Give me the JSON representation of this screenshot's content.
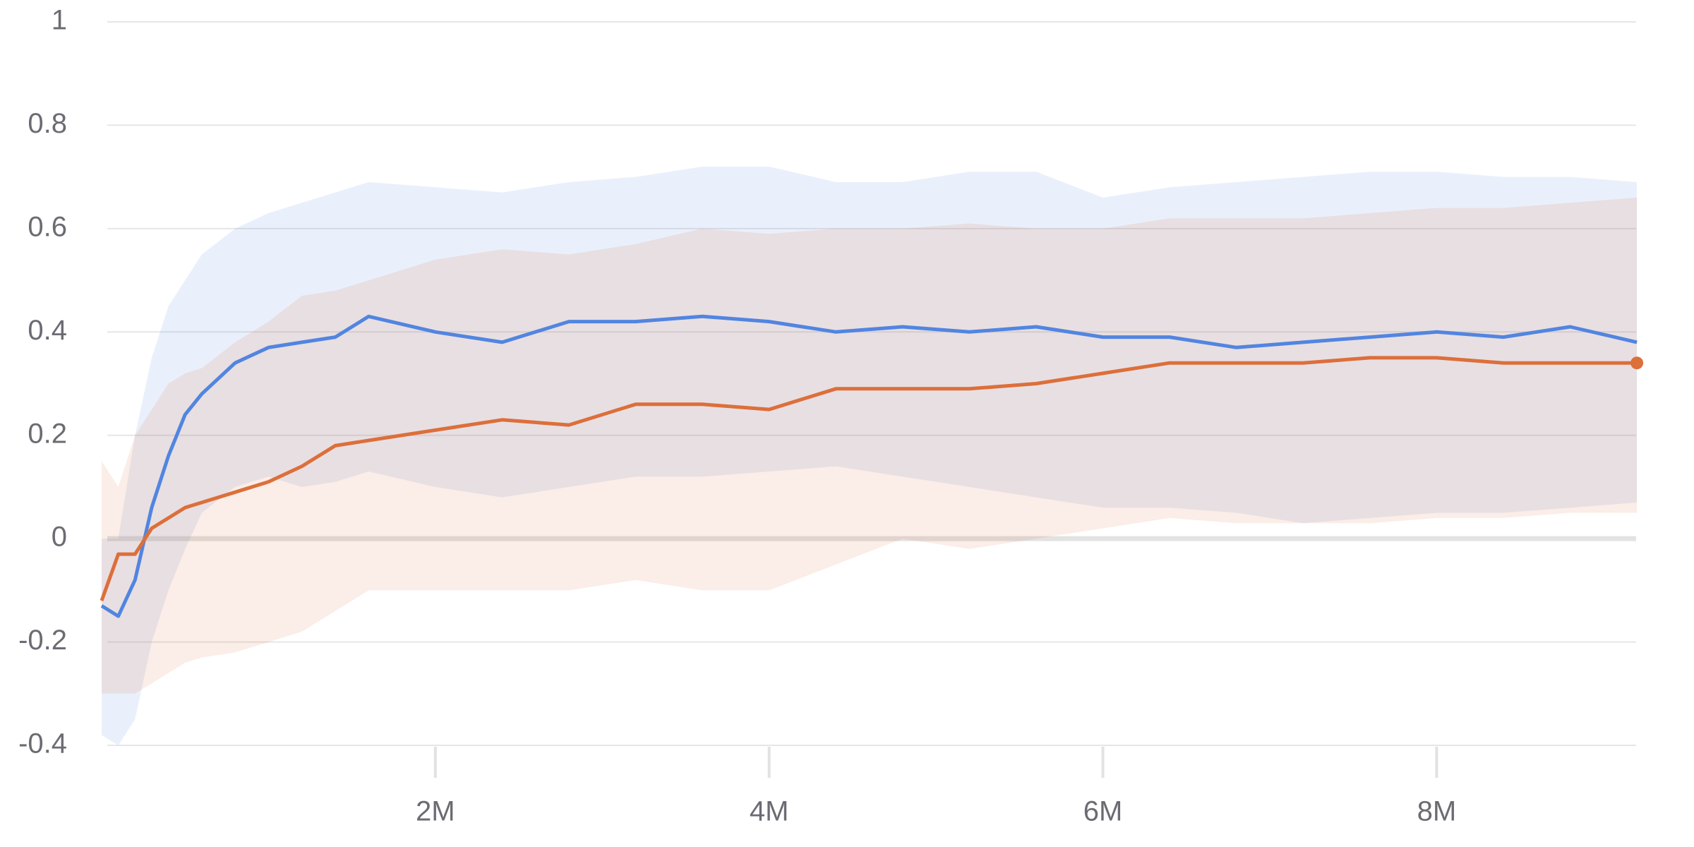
{
  "chart_data": {
    "type": "line",
    "x": [
      0,
      100000,
      200000,
      300000,
      400000,
      500000,
      600000,
      800000,
      1000000,
      1200000,
      1400000,
      1600000,
      2000000,
      2400000,
      2800000,
      3200000,
      3600000,
      4000000,
      4400000,
      4800000,
      5200000,
      5600000,
      6000000,
      6400000,
      6800000,
      7200000,
      7600000,
      8000000,
      8400000,
      8800000,
      9200000
    ],
    "series": [
      {
        "color": "#5185e0",
        "values": [
          -0.13,
          -0.15,
          -0.08,
          0.06,
          0.16,
          0.24,
          0.28,
          0.34,
          0.37,
          0.38,
          0.39,
          0.43,
          0.4,
          0.38,
          0.42,
          0.42,
          0.43,
          0.42,
          0.4,
          0.41,
          0.4,
          0.41,
          0.39,
          0.39,
          0.37,
          0.38,
          0.39,
          0.4,
          0.39,
          0.41,
          0.38
        ],
        "band": {
          "upper": [
            0.0,
            0.0,
            0.2,
            0.35,
            0.45,
            0.5,
            0.55,
            0.6,
            0.63,
            0.65,
            0.67,
            0.69,
            0.68,
            0.67,
            0.69,
            0.7,
            0.72,
            0.72,
            0.69,
            0.69,
            0.71,
            0.71,
            0.66,
            0.68,
            0.69,
            0.7,
            0.71,
            0.71,
            0.7,
            0.7,
            0.69
          ],
          "lower": [
            -0.38,
            -0.4,
            -0.35,
            -0.2,
            -0.1,
            -0.02,
            0.05,
            0.1,
            0.12,
            0.1,
            0.11,
            0.13,
            0.1,
            0.08,
            0.1,
            0.12,
            0.12,
            0.13,
            0.14,
            0.12,
            0.1,
            0.08,
            0.06,
            0.06,
            0.05,
            0.03,
            0.04,
            0.05,
            0.05,
            0.06,
            0.07
          ]
        }
      },
      {
        "color": "#dc6f3a",
        "values": [
          -0.12,
          -0.03,
          -0.03,
          0.02,
          0.04,
          0.06,
          0.07,
          0.09,
          0.11,
          0.14,
          0.18,
          0.19,
          0.21,
          0.23,
          0.22,
          0.26,
          0.26,
          0.25,
          0.29,
          0.29,
          0.29,
          0.3,
          0.32,
          0.34,
          0.34,
          0.34,
          0.35,
          0.35,
          0.34,
          0.34,
          0.34
        ],
        "band": {
          "upper": [
            0.15,
            0.1,
            0.2,
            0.25,
            0.3,
            0.32,
            0.33,
            0.38,
            0.42,
            0.47,
            0.48,
            0.5,
            0.54,
            0.56,
            0.55,
            0.57,
            0.6,
            0.59,
            0.6,
            0.6,
            0.61,
            0.6,
            0.6,
            0.62,
            0.62,
            0.62,
            0.63,
            0.64,
            0.64,
            0.65,
            0.66
          ],
          "lower": [
            -0.3,
            -0.3,
            -0.3,
            -0.28,
            -0.26,
            -0.24,
            -0.23,
            -0.22,
            -0.2,
            -0.18,
            -0.14,
            -0.1,
            -0.1,
            -0.1,
            -0.1,
            -0.08,
            -0.1,
            -0.1,
            -0.05,
            0.0,
            -0.02,
            0.0,
            0.02,
            0.04,
            0.03,
            0.03,
            0.03,
            0.04,
            0.04,
            0.05,
            0.05
          ]
        }
      }
    ],
    "xlim": [
      0,
      9500000
    ],
    "xticks": [
      {
        "value": 2000000,
        "label": "2M"
      },
      {
        "value": 4000000,
        "label": "4M"
      },
      {
        "value": 6000000,
        "label": "6M"
      },
      {
        "value": 8000000,
        "label": "8M"
      }
    ],
    "ylim": [
      -0.4,
      1
    ],
    "yticks": [
      -0.4,
      -0.2,
      0,
      0.2,
      0.4,
      0.6,
      0.8,
      1
    ],
    "grid": true
  }
}
